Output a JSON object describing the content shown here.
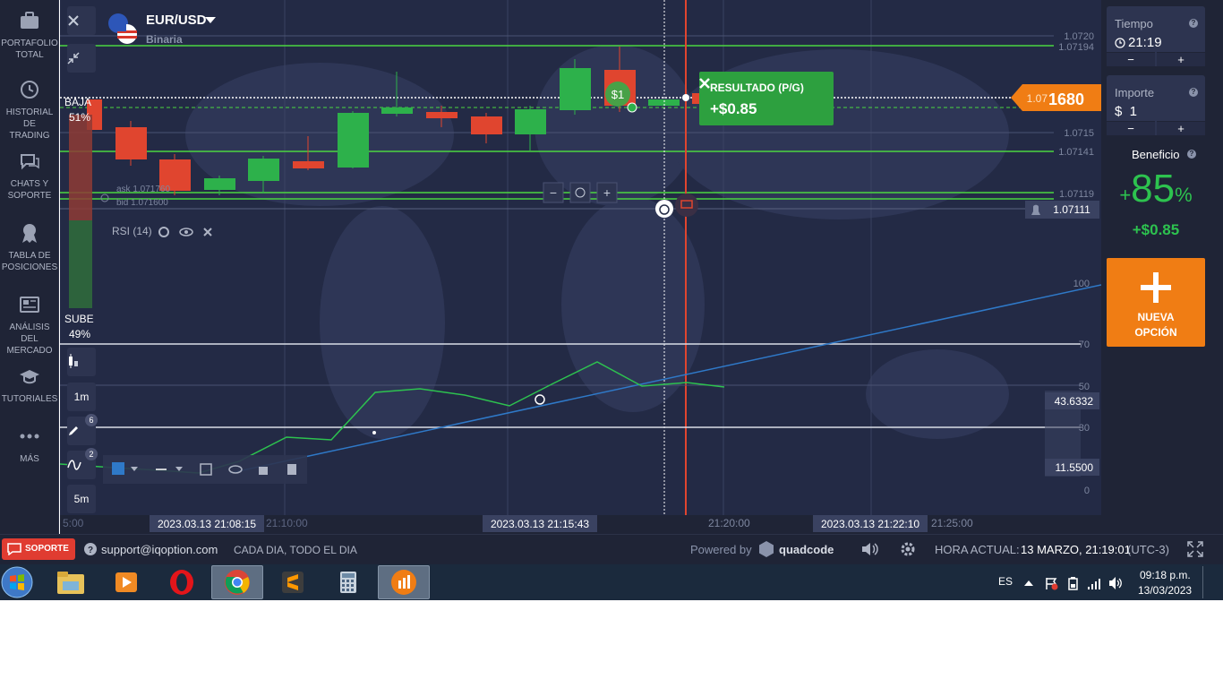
{
  "sidebar": {
    "items": [
      {
        "label": "PORTAFOLIO\nTOTAL",
        "icon": "briefcase-icon"
      },
      {
        "label": "HISTORIAL DE\nTRADING",
        "icon": "history-icon"
      },
      {
        "label": "CHATS Y\nSOPORTE",
        "icon": "chat-icon"
      },
      {
        "label": "TABLA DE\nPOSICIONES",
        "icon": "leaderboard-icon"
      },
      {
        "label": "ANÁLISIS DEL\nMERCADO",
        "icon": "newspaper-icon"
      },
      {
        "label": "TUTORIALES",
        "icon": "graduation-cap-icon"
      },
      {
        "label": "MÁS",
        "icon": "more-dots-icon"
      }
    ]
  },
  "asset": {
    "name": "EUR/USD",
    "type": "Binaria"
  },
  "sentiment": {
    "down_label": "BAJA",
    "down_pct": "51%",
    "up_label": "SUBE",
    "up_pct": "49%"
  },
  "quote": {
    "ask": "ask 1.071760",
    "bid": "bid 1.071600"
  },
  "indicator": {
    "label": "RSI (14)"
  },
  "timeframes": {
    "candle": "1m",
    "expiry": "5m"
  },
  "badges": {
    "drawings": "6",
    "indicators": "2"
  },
  "zoom": {
    "minus": "−",
    "plus": "+"
  },
  "result_popup": {
    "title": "RESULTADO (P/G)",
    "value": "+$0.85"
  },
  "trade_marker": {
    "amount": "$1"
  },
  "price_axis": {
    "labels": [
      "1.0720",
      "1.07194",
      "1.0715",
      "1.07141",
      "1.07119",
      "1.07111"
    ],
    "current_prefix": "1.07",
    "current_suffix": "1680"
  },
  "rsi_axis": {
    "labels": [
      "100",
      "70",
      "50",
      "43.6332",
      "30",
      "11.5500",
      "0"
    ]
  },
  "time_axis": {
    "ticks": [
      "5:00",
      "21:10:00",
      "21:20:00",
      "21:25:00"
    ],
    "highlighted": [
      "2023.03.13 21:08:15",
      "2023.03.13 21:15:43",
      "2023.03.13 21:22:10"
    ]
  },
  "right_panel": {
    "time_label": "Tiempo",
    "time_value": "21:19",
    "amount_label": "Importe",
    "amount_value": "$  1",
    "minus": "−",
    "plus": "+",
    "profit_label": "Beneficio",
    "profit_pct": "85",
    "profit_pct_sign": "+",
    "profit_pct_unit": "%",
    "profit_value": "+$0.85",
    "new_option_label": "NUEVA\nOPCIÓN"
  },
  "bottom_bar": {
    "support_label": "SOPORTE",
    "email": "support@iqoption.com",
    "hours": "CADA DIA, TODO EL DIA",
    "powered_by": "Powered by",
    "brand": "quadcode",
    "current_time_label": "HORA ACTUAL:",
    "current_time_value": "13 MARZO, 21:19:01",
    "timezone": "(UTC-3)"
  },
  "taskbar": {
    "language": "ES",
    "clock_time": "09:18 p.m.",
    "clock_date": "13/03/2023"
  },
  "colors": {
    "chart_bg": "#232a45",
    "green": "#2db14b",
    "red": "#e0452f",
    "orange": "#f07d14",
    "accent_line": "#4bd640"
  }
}
